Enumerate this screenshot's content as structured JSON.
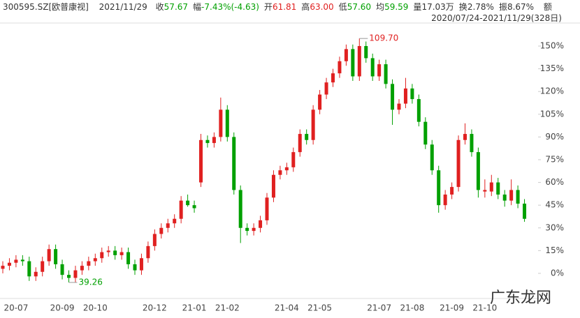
{
  "header": {
    "code": "300595.SZ[欧普康视]",
    "date": "2021/11/29",
    "fields": [
      {
        "label": "收",
        "value": "57.67"
      },
      {
        "label": "幅",
        "value": "-7.43%(-4.63)"
      },
      {
        "label": "开",
        "value": "61.81"
      },
      {
        "label": "高",
        "value": "63.00"
      },
      {
        "label": "低",
        "value": "57.60"
      },
      {
        "label": "均",
        "value": "59.59"
      },
      {
        "label": "量",
        "value": "17.03万"
      },
      {
        "label": "换",
        "value": "2.78%"
      },
      {
        "label": "振",
        "value": "8.67%"
      }
    ],
    "extra": "额",
    "range": "2020/07/24-2021/11/29(328日)"
  },
  "watermark": "广东龙网",
  "chart_data": {
    "type": "candlestick",
    "up_color": "#e02020",
    "down_color": "#00a000",
    "high_label": "109.70",
    "low_label": "39.26",
    "ylim": [
      -8.3,
      158.3
    ],
    "yticks": [
      {
        "value": 0,
        "label": "0%"
      },
      {
        "value": 15,
        "label": "15%"
      },
      {
        "value": 30,
        "label": "30%"
      },
      {
        "value": 45,
        "label": "45%"
      },
      {
        "value": 60,
        "label": "60%"
      },
      {
        "value": 75,
        "label": "75%"
      },
      {
        "value": 90,
        "label": "90%"
      },
      {
        "value": 105,
        "label": "105%"
      },
      {
        "value": 120,
        "label": "120%"
      },
      {
        "value": 135,
        "label": "135%"
      },
      {
        "value": 150,
        "label": "150%"
      }
    ],
    "categories": [
      null,
      null,
      "20-07",
      null,
      null,
      null,
      null,
      null,
      null,
      "20-09",
      null,
      null,
      null,
      null,
      "20-10",
      null,
      null,
      null,
      null,
      null,
      null,
      null,
      null,
      "20-12",
      null,
      null,
      null,
      null,
      null,
      "21-01",
      null,
      null,
      null,
      null,
      "21-02",
      null,
      null,
      null,
      null,
      null,
      null,
      null,
      null,
      "21-04",
      null,
      null,
      null,
      null,
      "21-05",
      null,
      null,
      null,
      null,
      null,
      null,
      null,
      null,
      "21-07",
      null,
      null,
      null,
      null,
      "21-08",
      null,
      null,
      null,
      null,
      null,
      "21-09",
      null,
      null,
      null,
      null,
      "21-10",
      null,
      null,
      null,
      null,
      null,
      null
    ],
    "candles": [
      [
        3,
        8,
        0,
        5
      ],
      [
        5,
        10,
        2,
        7
      ],
      [
        7,
        12,
        4,
        9
      ],
      [
        9,
        12,
        5,
        8
      ],
      [
        8,
        11,
        -5,
        -2
      ],
      [
        -2,
        4,
        -5,
        1
      ],
      [
        1,
        11,
        -2,
        8
      ],
      [
        8,
        19,
        5,
        16
      ],
      [
        16,
        19,
        3,
        6
      ],
      [
        6,
        9,
        -4,
        -1
      ],
      [
        -1,
        2,
        -6,
        -3
      ],
      [
        -3,
        5,
        -6,
        2
      ],
      [
        2,
        8,
        -1,
        5
      ],
      [
        5,
        11,
        2,
        8
      ],
      [
        8,
        13,
        5,
        10
      ],
      [
        10,
        17,
        7,
        14
      ],
      [
        14,
        18,
        11,
        15
      ],
      [
        15,
        18,
        9,
        12
      ],
      [
        12,
        17,
        9,
        14
      ],
      [
        14,
        17,
        3,
        6
      ],
      [
        6,
        9,
        -1,
        2
      ],
      [
        2,
        13,
        -1,
        10
      ],
      [
        10,
        21,
        7,
        18
      ],
      [
        18,
        29,
        15,
        26
      ],
      [
        26,
        33,
        23,
        30
      ],
      [
        30,
        36,
        27,
        33
      ],
      [
        33,
        39,
        30,
        36
      ],
      [
        36,
        51,
        33,
        48
      ],
      [
        48,
        52,
        44,
        45
      ],
      [
        45,
        48,
        40,
        43
      ],
      [
        60,
        92,
        57,
        88
      ],
      [
        88,
        91,
        83,
        86
      ],
      [
        86,
        93,
        83,
        90
      ],
      [
        90,
        116,
        87,
        108
      ],
      [
        108,
        111,
        87,
        90
      ],
      [
        90,
        93,
        52,
        55
      ],
      [
        55,
        58,
        20,
        30
      ],
      [
        30,
        33,
        25,
        28
      ],
      [
        28,
        33,
        25,
        30
      ],
      [
        30,
        38,
        27,
        35
      ],
      [
        35,
        53,
        32,
        50
      ],
      [
        50,
        68,
        47,
        65
      ],
      [
        65,
        71,
        62,
        68
      ],
      [
        68,
        73,
        65,
        70
      ],
      [
        70,
        83,
        67,
        80
      ],
      [
        80,
        95,
        77,
        92
      ],
      [
        92,
        95,
        85,
        88
      ],
      [
        88,
        111,
        85,
        108
      ],
      [
        108,
        121,
        105,
        118
      ],
      [
        118,
        129,
        115,
        126
      ],
      [
        126,
        135,
        123,
        132
      ],
      [
        132,
        143,
        129,
        140
      ],
      [
        140,
        151,
        137,
        148
      ],
      [
        148,
        151,
        127,
        130
      ],
      [
        130,
        155,
        127,
        150
      ],
      [
        150,
        153,
        139,
        142
      ],
      [
        142,
        145,
        127,
        130
      ],
      [
        130,
        141,
        127,
        138
      ],
      [
        138,
        141,
        122,
        125
      ],
      [
        125,
        128,
        98,
        108
      ],
      [
        108,
        115,
        105,
        112
      ],
      [
        112,
        129,
        109,
        122
      ],
      [
        122,
        125,
        112,
        115
      ],
      [
        115,
        118,
        97,
        100
      ],
      [
        100,
        103,
        82,
        85
      ],
      [
        85,
        88,
        65,
        68
      ],
      [
        68,
        71,
        40,
        45
      ],
      [
        45,
        55,
        42,
        52
      ],
      [
        52,
        60,
        49,
        57
      ],
      [
        57,
        91,
        54,
        88
      ],
      [
        88,
        99,
        85,
        92
      ],
      [
        92,
        95,
        77,
        80
      ],
      [
        80,
        83,
        50,
        55
      ],
      [
        54,
        62,
        50,
        55
      ],
      [
        54,
        65,
        51,
        60
      ],
      [
        60,
        63,
        49,
        52
      ],
      [
        52,
        55,
        44,
        48
      ],
      [
        48,
        62,
        45,
        55
      ],
      [
        55,
        58,
        43,
        46
      ],
      [
        46,
        49,
        34,
        36
      ]
    ]
  }
}
